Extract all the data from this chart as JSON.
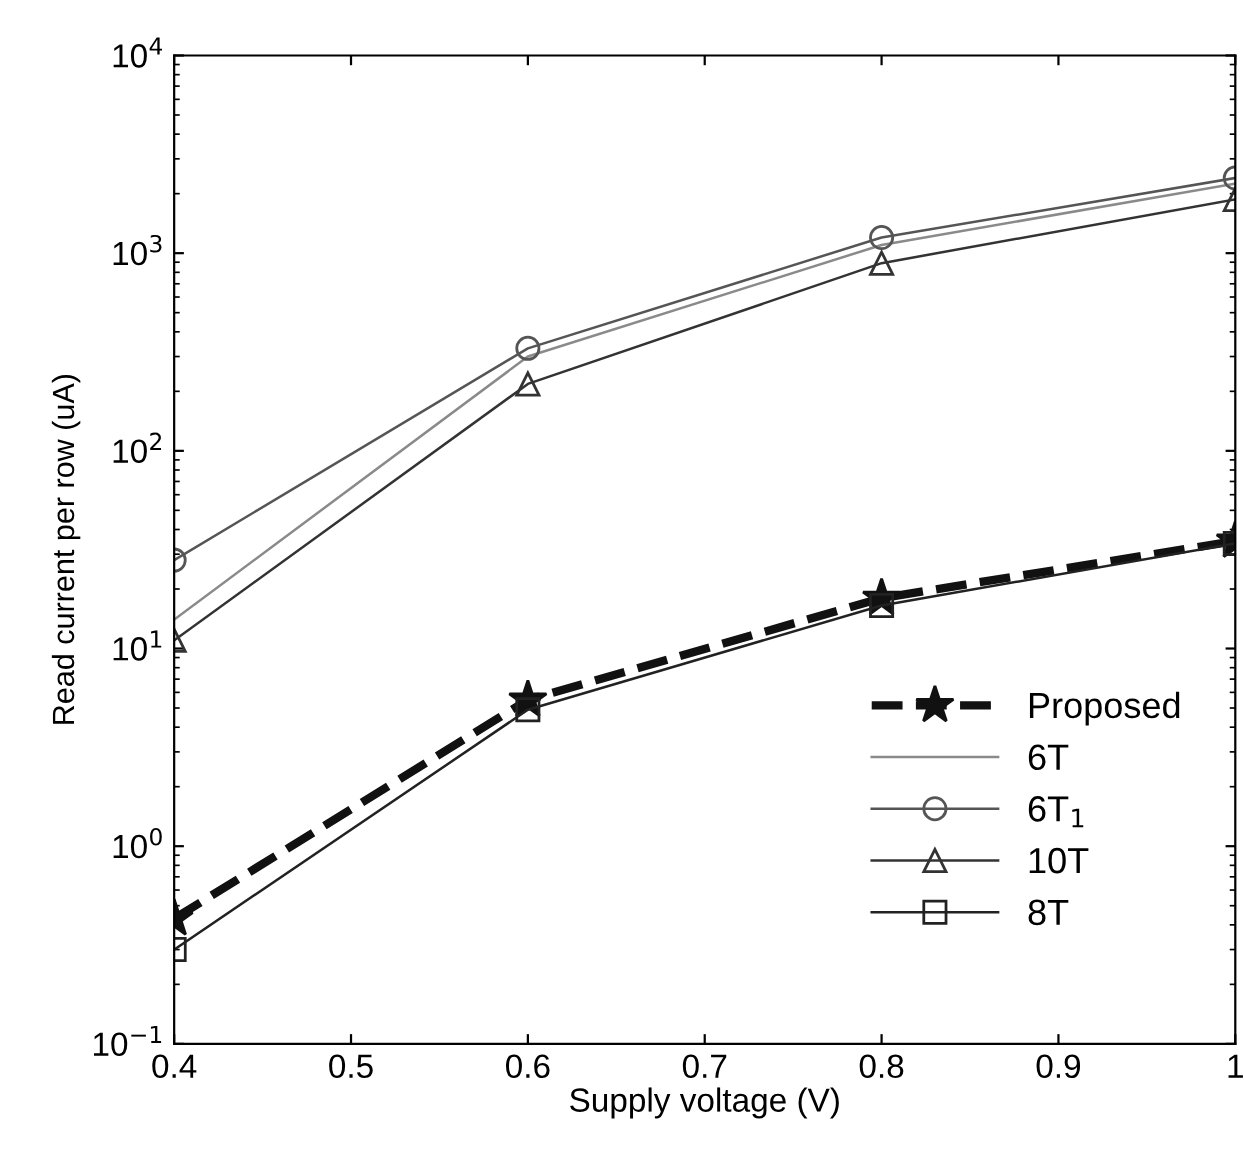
{
  "chart_data": {
    "type": "line",
    "xlabel": "Supply voltage (V)",
    "ylabel": "Read current per row (uA)",
    "x": [
      0.4,
      0.6,
      0.8,
      1.0
    ],
    "series": [
      {
        "name": "Proposed",
        "color": "#111111",
        "values": [
          0.43,
          5.5,
          18,
          35
        ],
        "marker": "star",
        "line_style": "dashed"
      },
      {
        "name": "6T",
        "color": "#8a8a8a",
        "values": [
          14,
          300,
          1100,
          2250
        ],
        "marker": "none",
        "line_style": "solid"
      },
      {
        "name": "6T$_{1}$",
        "color": "#555555",
        "values": [
          28,
          330,
          1200,
          2400
        ],
        "marker": "circle",
        "line_style": "solid"
      },
      {
        "name": "10T",
        "color": "#333333",
        "values": [
          11,
          218,
          890,
          1870
        ],
        "marker": "triangle",
        "line_style": "solid"
      },
      {
        "name": "8T",
        "color": "#222222",
        "values": [
          0.3,
          4.9,
          16.5,
          34
        ],
        "marker": "square",
        "line_style": "solid"
      }
    ],
    "log": "y",
    "xlim": [
      0.4,
      1.0
    ],
    "xticks": [
      0.4,
      0.5,
      0.6,
      0.7,
      0.8,
      0.9,
      1
    ],
    "ylim": [
      0.1,
      10000
    ],
    "yticks": [
      {
        "value": 0.1,
        "label": "10$^{−1}$"
      },
      {
        "value": 1,
        "label": "10$^{0}$"
      },
      {
        "value": 10,
        "label": "10$^{1}$"
      },
      {
        "value": 100,
        "label": "10$^{2}$"
      },
      {
        "value": 1000,
        "label": "10$^{3}$"
      },
      {
        "value": 10000,
        "label": "10$^{4}$"
      }
    ],
    "grid": false,
    "legend": "bottom right"
  }
}
